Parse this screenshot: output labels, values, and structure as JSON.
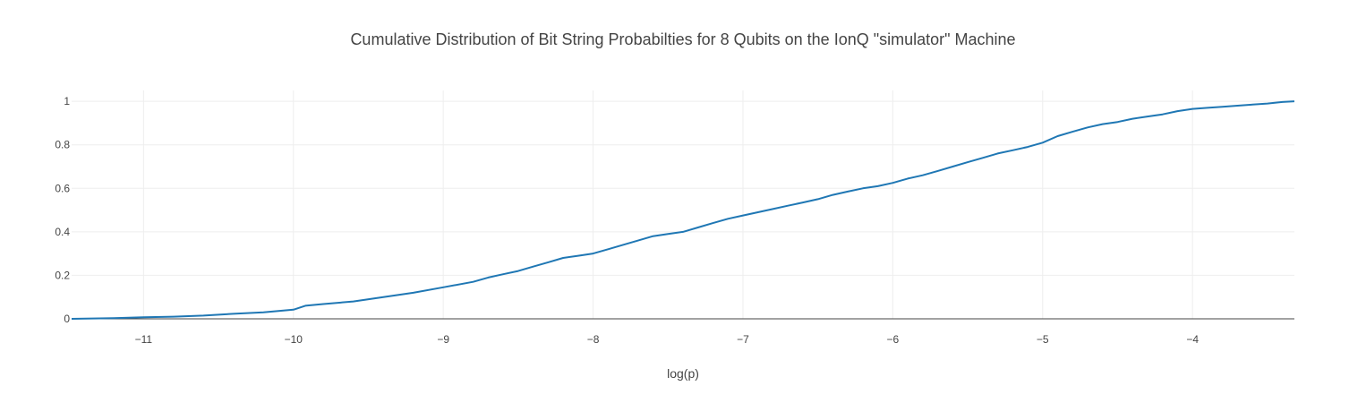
{
  "chart_data": {
    "type": "line",
    "title": "Cumulative Distribution of Bit String Probabilties for 8 Qubits on the IonQ \"simulator\" Machine",
    "xlabel": "log(p)",
    "ylabel": "",
    "xlim": [
      -11.48,
      -3.32
    ],
    "ylim": [
      0,
      1.05
    ],
    "x_ticks": [
      -11,
      -10,
      -9,
      -8,
      -7,
      -6,
      -5,
      -4
    ],
    "y_ticks": [
      0,
      0.2,
      0.4,
      0.6,
      0.8,
      1
    ],
    "x_tick_labels": [
      "−11",
      "−10",
      "−9",
      "−8",
      "−7",
      "−6",
      "−5",
      "−4"
    ],
    "y_tick_labels": [
      "0",
      "0.2",
      "0.4",
      "0.6",
      "0.8",
      "1"
    ],
    "grid": true,
    "legend": "none",
    "colors": {
      "line": "#1f77b4",
      "grid": "#eeeeee",
      "text": "#444444"
    },
    "series": [
      {
        "x": [
          -11.48,
          -11.2,
          -11.0,
          -10.8,
          -10.6,
          -10.4,
          -10.2,
          -10.0,
          -9.92,
          -9.8,
          -9.6,
          -9.4,
          -9.2,
          -9.0,
          -8.8,
          -8.7,
          -8.6,
          -8.5,
          -8.4,
          -8.3,
          -8.2,
          -8.1,
          -8.0,
          -7.9,
          -7.8,
          -7.7,
          -7.6,
          -7.5,
          -7.4,
          -7.3,
          -7.2,
          -7.1,
          -7.0,
          -6.9,
          -6.8,
          -6.7,
          -6.6,
          -6.5,
          -6.4,
          -6.3,
          -6.2,
          -6.1,
          -6.0,
          -5.9,
          -5.8,
          -5.7,
          -5.6,
          -5.5,
          -5.4,
          -5.3,
          -5.2,
          -5.1,
          -5.0,
          -4.9,
          -4.8,
          -4.7,
          -4.6,
          -4.5,
          -4.4,
          -4.3,
          -4.2,
          -4.1,
          -4.0,
          -3.9,
          -3.8,
          -3.7,
          -3.6,
          -3.5,
          -3.4,
          -3.32
        ],
        "y": [
          0.0,
          0.003,
          0.007,
          0.01,
          0.015,
          0.023,
          0.03,
          0.042,
          0.06,
          0.068,
          0.08,
          0.1,
          0.12,
          0.145,
          0.17,
          0.19,
          0.205,
          0.22,
          0.24,
          0.26,
          0.28,
          0.29,
          0.3,
          0.32,
          0.34,
          0.36,
          0.38,
          0.39,
          0.4,
          0.42,
          0.44,
          0.46,
          0.475,
          0.49,
          0.505,
          0.52,
          0.535,
          0.55,
          0.57,
          0.585,
          0.6,
          0.61,
          0.625,
          0.645,
          0.66,
          0.68,
          0.7,
          0.72,
          0.74,
          0.76,
          0.775,
          0.79,
          0.81,
          0.84,
          0.86,
          0.88,
          0.895,
          0.905,
          0.92,
          0.93,
          0.94,
          0.955,
          0.965,
          0.97,
          0.975,
          0.98,
          0.985,
          0.99,
          0.997,
          1.0
        ]
      }
    ]
  }
}
